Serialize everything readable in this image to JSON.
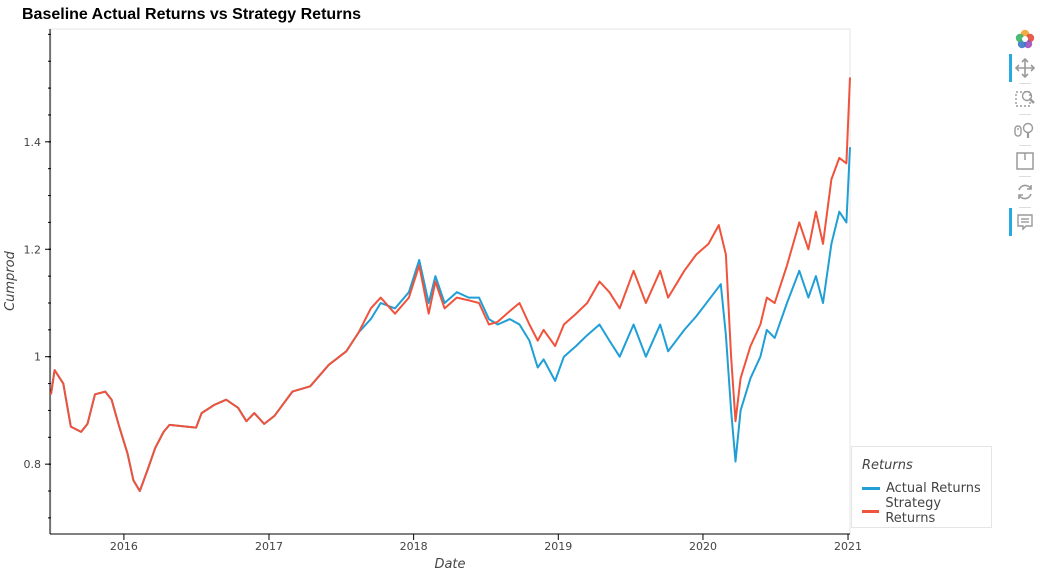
{
  "chart_data": {
    "type": "line",
    "title": "Baseline Actual Returns vs Strategy Returns",
    "xlabel": "Date",
    "ylabel": "Cumprod",
    "xlim": [
      "2015-07-01",
      "2021-01-06"
    ],
    "ylim": [
      0.67,
      1.61
    ],
    "x_ticks": [
      "2016",
      "2017",
      "2018",
      "2019",
      "2020",
      "2021"
    ],
    "y_ticks": [
      "0.8",
      "1",
      "1.2",
      "1.4"
    ],
    "legend_title": "Returns",
    "legend_position": "bottom-right, outside plot",
    "grid": false,
    "series": [
      {
        "name": "Actual Returns",
        "color": "#1f9fd6",
        "points": [
          [
            "2015-07-01",
            0.93
          ],
          [
            "2015-07-10",
            0.975
          ],
          [
            "2015-08-01",
            0.95
          ],
          [
            "2015-08-20",
            0.87
          ],
          [
            "2015-09-15",
            0.86
          ],
          [
            "2015-10-01",
            0.875
          ],
          [
            "2015-10-20",
            0.93
          ],
          [
            "2015-11-15",
            0.935
          ],
          [
            "2015-12-01",
            0.92
          ],
          [
            "2015-12-20",
            0.87
          ],
          [
            "2016-01-10",
            0.82
          ],
          [
            "2016-01-25",
            0.77
          ],
          [
            "2016-02-10",
            0.75
          ],
          [
            "2016-03-01",
            0.79
          ],
          [
            "2016-03-20",
            0.83
          ],
          [
            "2016-04-10",
            0.86
          ],
          [
            "2016-04-25",
            0.873
          ],
          [
            "2016-07-01",
            0.868
          ],
          [
            "2016-07-15",
            0.895
          ],
          [
            "2016-08-15",
            0.91
          ],
          [
            "2016-09-15",
            0.92
          ],
          [
            "2016-10-15",
            0.905
          ],
          [
            "2016-11-05",
            0.88
          ],
          [
            "2016-11-25",
            0.895
          ],
          [
            "2016-12-20",
            0.875
          ],
          [
            "2017-01-15",
            0.89
          ],
          [
            "2017-03-01",
            0.935
          ],
          [
            "2017-04-15",
            0.945
          ],
          [
            "2017-06-01",
            0.985
          ],
          [
            "2017-07-15",
            1.01
          ],
          [
            "2017-08-15",
            1.045
          ],
          [
            "2017-09-15",
            1.07
          ],
          [
            "2017-10-10",
            1.1
          ],
          [
            "2017-11-15",
            1.09
          ],
          [
            "2017-12-20",
            1.12
          ],
          [
            "2018-01-15",
            1.18
          ],
          [
            "2018-02-08",
            1.1
          ],
          [
            "2018-02-25",
            1.15
          ],
          [
            "2018-03-20",
            1.1
          ],
          [
            "2018-04-20",
            1.12
          ],
          [
            "2018-05-20",
            1.11
          ],
          [
            "2018-06-15",
            1.11
          ],
          [
            "2018-07-10",
            1.07
          ],
          [
            "2018-08-01",
            1.06
          ],
          [
            "2018-09-01",
            1.07
          ],
          [
            "2018-09-25",
            1.06
          ],
          [
            "2018-10-20",
            1.03
          ],
          [
            "2018-11-10",
            0.98
          ],
          [
            "2018-11-25",
            0.995
          ],
          [
            "2018-12-24",
            0.955
          ],
          [
            "2019-01-15",
            1.0
          ],
          [
            "2019-02-15",
            1.02
          ],
          [
            "2019-03-15",
            1.04
          ],
          [
            "2019-04-15",
            1.06
          ],
          [
            "2019-05-10",
            1.03
          ],
          [
            "2019-06-05",
            1.0
          ],
          [
            "2019-07-10",
            1.06
          ],
          [
            "2019-08-10",
            1.0
          ],
          [
            "2019-09-15",
            1.06
          ],
          [
            "2019-10-05",
            1.01
          ],
          [
            "2019-11-15",
            1.05
          ],
          [
            "2019-12-15",
            1.075
          ],
          [
            "2020-01-15",
            1.105
          ],
          [
            "2020-02-15",
            1.135
          ],
          [
            "2020-02-28",
            1.04
          ],
          [
            "2020-03-12",
            0.9
          ],
          [
            "2020-03-23",
            0.805
          ],
          [
            "2020-04-05",
            0.9
          ],
          [
            "2020-04-30",
            0.96
          ],
          [
            "2020-05-25",
            1.0
          ],
          [
            "2020-06-10",
            1.05
          ],
          [
            "2020-06-30",
            1.035
          ],
          [
            "2020-07-31",
            1.1
          ],
          [
            "2020-08-31",
            1.16
          ],
          [
            "2020-09-23",
            1.11
          ],
          [
            "2020-10-12",
            1.15
          ],
          [
            "2020-10-30",
            1.1
          ],
          [
            "2020-11-20",
            1.21
          ],
          [
            "2020-12-10",
            1.27
          ],
          [
            "2020-12-28",
            1.25
          ],
          [
            "2021-01-06",
            1.39
          ]
        ]
      },
      {
        "name": "Strategy Returns",
        "color": "#f0533c",
        "points": [
          [
            "2015-07-01",
            0.93
          ],
          [
            "2015-07-10",
            0.975
          ],
          [
            "2015-08-01",
            0.95
          ],
          [
            "2015-08-20",
            0.87
          ],
          [
            "2015-09-15",
            0.86
          ],
          [
            "2015-10-01",
            0.875
          ],
          [
            "2015-10-20",
            0.93
          ],
          [
            "2015-11-15",
            0.935
          ],
          [
            "2015-12-01",
            0.92
          ],
          [
            "2015-12-20",
            0.87
          ],
          [
            "2016-01-10",
            0.82
          ],
          [
            "2016-01-25",
            0.77
          ],
          [
            "2016-02-10",
            0.75
          ],
          [
            "2016-03-01",
            0.79
          ],
          [
            "2016-03-20",
            0.83
          ],
          [
            "2016-04-10",
            0.86
          ],
          [
            "2016-04-25",
            0.873
          ],
          [
            "2016-07-01",
            0.868
          ],
          [
            "2016-07-15",
            0.895
          ],
          [
            "2016-08-15",
            0.91
          ],
          [
            "2016-09-15",
            0.92
          ],
          [
            "2016-10-15",
            0.905
          ],
          [
            "2016-11-05",
            0.88
          ],
          [
            "2016-11-25",
            0.895
          ],
          [
            "2016-12-20",
            0.875
          ],
          [
            "2017-01-15",
            0.89
          ],
          [
            "2017-03-01",
            0.935
          ],
          [
            "2017-04-15",
            0.945
          ],
          [
            "2017-06-01",
            0.985
          ],
          [
            "2017-07-15",
            1.01
          ],
          [
            "2017-08-15",
            1.045
          ],
          [
            "2017-09-15",
            1.09
          ],
          [
            "2017-10-10",
            1.11
          ],
          [
            "2017-11-15",
            1.08
          ],
          [
            "2017-12-20",
            1.11
          ],
          [
            "2018-01-15",
            1.17
          ],
          [
            "2018-02-08",
            1.08
          ],
          [
            "2018-02-25",
            1.14
          ],
          [
            "2018-03-20",
            1.09
          ],
          [
            "2018-04-20",
            1.11
          ],
          [
            "2018-05-20",
            1.105
          ],
          [
            "2018-06-15",
            1.1
          ],
          [
            "2018-07-10",
            1.06
          ],
          [
            "2018-08-01",
            1.065
          ],
          [
            "2018-09-01",
            1.085
          ],
          [
            "2018-09-25",
            1.1
          ],
          [
            "2018-10-20",
            1.06
          ],
          [
            "2018-11-10",
            1.03
          ],
          [
            "2018-11-25",
            1.05
          ],
          [
            "2018-12-24",
            1.02
          ],
          [
            "2019-01-15",
            1.06
          ],
          [
            "2019-02-15",
            1.08
          ],
          [
            "2019-03-15",
            1.1
          ],
          [
            "2019-04-15",
            1.14
          ],
          [
            "2019-05-10",
            1.12
          ],
          [
            "2019-06-05",
            1.09
          ],
          [
            "2019-07-10",
            1.16
          ],
          [
            "2019-08-10",
            1.1
          ],
          [
            "2019-09-15",
            1.16
          ],
          [
            "2019-10-05",
            1.11
          ],
          [
            "2019-11-15",
            1.16
          ],
          [
            "2019-12-15",
            1.19
          ],
          [
            "2020-01-15",
            1.21
          ],
          [
            "2020-02-10",
            1.245
          ],
          [
            "2020-02-28",
            1.19
          ],
          [
            "2020-03-12",
            1.0
          ],
          [
            "2020-03-23",
            0.88
          ],
          [
            "2020-04-05",
            0.96
          ],
          [
            "2020-04-30",
            1.02
          ],
          [
            "2020-05-25",
            1.06
          ],
          [
            "2020-06-10",
            1.11
          ],
          [
            "2020-06-30",
            1.1
          ],
          [
            "2020-07-31",
            1.17
          ],
          [
            "2020-08-31",
            1.25
          ],
          [
            "2020-09-23",
            1.2
          ],
          [
            "2020-10-12",
            1.27
          ],
          [
            "2020-10-30",
            1.21
          ],
          [
            "2020-11-20",
            1.33
          ],
          [
            "2020-12-10",
            1.37
          ],
          [
            "2020-12-28",
            1.36
          ],
          [
            "2021-01-06",
            1.52
          ]
        ]
      }
    ]
  },
  "toolbar": {
    "tools": [
      {
        "name": "bokeh-logo",
        "icon": "bokeh-logo-icon",
        "active": false
      },
      {
        "name": "pan",
        "icon": "pan-icon",
        "active": true
      },
      {
        "name": "box-zoom",
        "icon": "box-zoom-icon",
        "active": false
      },
      {
        "name": "wheel-zoom",
        "icon": "wheel-zoom-icon",
        "active": false
      },
      {
        "name": "save",
        "icon": "save-icon",
        "active": false
      },
      {
        "name": "reset",
        "icon": "reset-icon",
        "active": false
      },
      {
        "name": "hover",
        "icon": "hover-icon",
        "active": true
      }
    ]
  }
}
